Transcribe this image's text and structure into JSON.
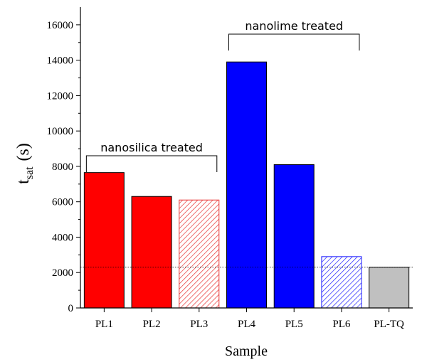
{
  "chart_data": {
    "type": "bar",
    "categories": [
      "PL1",
      "PL2",
      "PL3",
      "PL4",
      "PL5",
      "PL6",
      "PL-TQ"
    ],
    "values": [
      7650,
      6300,
      6100,
      13900,
      8100,
      2900,
      2300
    ],
    "bar_styles": [
      "solid",
      "solid",
      "hatched",
      "solid",
      "solid",
      "hatched",
      "solid"
    ],
    "bar_colors": [
      "#ff0000",
      "#ff0000",
      "#e83030",
      "#0000ff",
      "#0000ff",
      "#1a1aff",
      "#c0c0c0"
    ],
    "xlabel": "Sample",
    "ylabel_main": "t",
    "ylabel_sub": "sat",
    "ylabel_unit": "(s)",
    "ylim": [
      0,
      17000
    ],
    "yticks": [
      0,
      2000,
      4000,
      6000,
      8000,
      10000,
      12000,
      14000,
      16000
    ],
    "reference_line": {
      "value": 2300,
      "style": "dotted"
    },
    "annotations": [
      {
        "text": "nanosilica treated",
        "from": 0,
        "to": 2
      },
      {
        "text": "nanolime treated",
        "from": 3,
        "to": 5
      }
    ],
    "grid": false
  }
}
